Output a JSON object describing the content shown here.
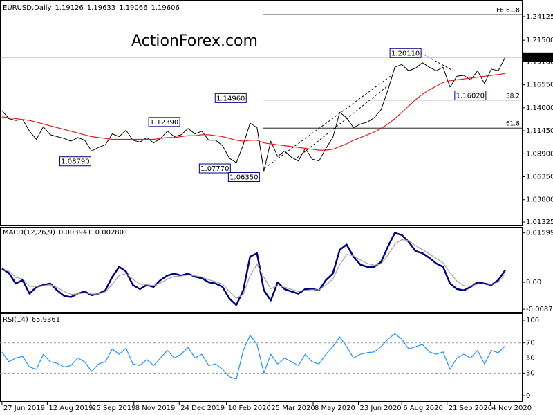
{
  "chart_data": [
    {
      "type": "line",
      "title": "EURUSD,Daily",
      "ohlc": [
        1.19126,
        1.19633,
        1.19066,
        1.19606
      ],
      "watermark": "ActionForex.com",
      "x": [
        0,
        7,
        14,
        21,
        28,
        35,
        42,
        49,
        56,
        63,
        70,
        77,
        84,
        91,
        98,
        105,
        112,
        119,
        126,
        133,
        140,
        147,
        154,
        161,
        168,
        175,
        182,
        189,
        196,
        203,
        210,
        217,
        224,
        231,
        238,
        245,
        252,
        259,
        266,
        273,
        280,
        287,
        294,
        301,
        308,
        315,
        322,
        329,
        336,
        343,
        350,
        357,
        364,
        371,
        378,
        385,
        392,
        399,
        406,
        413,
        420,
        427,
        434,
        441,
        448,
        455,
        462,
        469,
        476,
        483,
        490,
        497,
        504,
        511
      ],
      "xlim": [
        -2,
        528
      ],
      "ylim": [
        1.0094,
        1.2558
      ],
      "yticks": [
        1.24125,
        {
          "value": 1.215,
          "label": "1.21500"
        },
        {
          "value": 1.191,
          "label": "1.19100"
        },
        {
          "value": 1.1655,
          "label": "1.16550"
        },
        {
          "value": 1.14,
          "label": "1.14000"
        },
        {
          "value": 1.1145,
          "label": "1.11450"
        },
        {
          "value": 1.089,
          "label": "1.08900"
        },
        {
          "value": 1.0635,
          "label": "1.06350"
        },
        {
          "value": 1.038,
          "label": "1.03800"
        },
        1.01325
      ],
      "series": [
        {
          "color": "#000000",
          "values": [
            1.137,
            1.128,
            1.126,
            1.127,
            1.114,
            1.105,
            1.119,
            1.11,
            1.108,
            1.106,
            1.103,
            1.107,
            1.104,
            1.092,
            1.096,
            1.099,
            1.111,
            1.108,
            1.115,
            1.104,
            1.102,
            1.107,
            1.101,
            1.106,
            1.114,
            1.108,
            1.11,
            1.117,
            1.111,
            1.114,
            1.104,
            1.104,
            1.098,
            1.084,
            1.079,
            1.099,
            1.123,
            1.118,
            1.07,
            1.103,
            1.086,
            1.092,
            1.085,
            1.081,
            1.095,
            1.083,
            1.081,
            1.095,
            1.107,
            1.135,
            1.129,
            1.118,
            1.122,
            1.124,
            1.129,
            1.138,
            1.16,
            1.185,
            1.188,
            1.181,
            1.184,
            1.19,
            1.185,
            1.181,
            1.185,
            1.163,
            1.175,
            1.176,
            1.171,
            1.181,
            1.167,
            1.183,
            1.181,
            1.196
          ]
        },
        {
          "color": "#dd1f1f",
          "values": [
            1.13,
            1.129,
            1.128,
            1.127,
            1.126,
            1.124,
            1.122,
            1.12,
            1.118,
            1.116,
            1.114,
            1.112,
            1.11,
            1.108,
            1.107,
            1.106,
            1.105,
            1.105,
            1.105,
            1.105,
            1.105,
            1.105,
            1.105,
            1.106,
            1.107,
            1.107,
            1.108,
            1.109,
            1.109,
            1.11,
            1.11,
            1.109,
            1.108,
            1.106,
            1.104,
            1.103,
            1.104,
            1.104,
            1.101,
            1.1,
            1.099,
            1.098,
            1.097,
            1.096,
            1.095,
            1.094,
            1.093,
            1.093,
            1.094,
            1.097,
            1.1,
            1.104,
            1.107,
            1.11,
            1.113,
            1.117,
            1.122,
            1.128,
            1.135,
            1.142,
            1.149,
            1.155,
            1.16,
            1.164,
            1.168,
            1.17,
            1.171,
            1.172,
            1.173,
            1.174,
            1.175,
            1.176,
            1.177,
            1.178
          ]
        }
      ],
      "levels": [
        {
          "label": "FE 61.8",
          "value": 1.2435
        },
        {
          "label": "38.2",
          "value": 1.1485
        },
        {
          "label": "61.8",
          "value": 1.1175
        }
      ],
      "annotations": [
        {
          "x": 427,
          "value": 1.2011,
          "label": "1.20110"
        },
        {
          "x": 457,
          "value": 1.1602,
          "label": "1.16020"
        },
        {
          "x": 253,
          "value": 1.1496,
          "label": "1.14960"
        },
        {
          "x": 182,
          "value": 1.1239,
          "label": "1.12390"
        },
        {
          "x": 65,
          "value": 1.0879,
          "label": "1.08790"
        },
        {
          "x": 232,
          "value": 1.0777,
          "label": "1.07770"
        },
        {
          "x": 265,
          "value": 1.0635,
          "label": "1.06350"
        }
      ]
    },
    {
      "type": "line",
      "title": "MACD(12,26,9)",
      "readings": [
        0.003941,
        0.002801
      ],
      "x": [
        0,
        7,
        14,
        21,
        28,
        35,
        42,
        49,
        56,
        63,
        70,
        77,
        84,
        91,
        98,
        105,
        112,
        119,
        126,
        133,
        140,
        147,
        154,
        161,
        168,
        175,
        182,
        189,
        196,
        203,
        210,
        217,
        224,
        231,
        238,
        245,
        252,
        259,
        266,
        273,
        280,
        287,
        294,
        301,
        308,
        315,
        322,
        329,
        336,
        343,
        350,
        357,
        364,
        371,
        378,
        385,
        392,
        399,
        406,
        413,
        420,
        427,
        434,
        441,
        448,
        455,
        462,
        469,
        476,
        483,
        490,
        497,
        504,
        511
      ],
      "xlim": [
        -2,
        528
      ],
      "ylim": [
        -0.0094,
        0.0175
      ],
      "yticks": [
        0.015991,
        {
          "value": 0,
          "label": "0.00"
        },
        -0.00876
      ],
      "series": [
        {
          "color": "#000080",
          "values": [
            0.0044,
            0.003,
            -0.0004,
            0.0007,
            -0.0037,
            -0.0015,
            -0.0009,
            -0.0004,
            -0.0026,
            -0.0044,
            -0.0048,
            -0.0037,
            -0.003,
            -0.0042,
            -0.0037,
            -0.0026,
            0.0017,
            0.005,
            0.0035,
            -0.0009,
            -0.0022,
            -0.0009,
            -0.0015,
            0.0007,
            0.0022,
            0.0028,
            0.0022,
            0.0028,
            0.0018,
            0.0013,
            0,
            -0.0004,
            -0.0015,
            -0.0053,
            -0.0074,
            -0.0026,
            0.0083,
            0.0094,
            -0.0026,
            -0.0059,
            0,
            -0.0022,
            -0.003,
            -0.0037,
            -0.0022,
            -0.0022,
            -0.0026,
            0.0007,
            0.0028,
            0.0105,
            0.0122,
            0.0083,
            0.0057,
            0.005,
            0.005,
            0.0066,
            0.0116,
            0.016,
            0.0153,
            0.0131,
            0.0101,
            0.0094,
            0.0079,
            0.0061,
            0.005,
            -0.0004,
            -0.0022,
            -0.0026,
            -0.0015,
            0,
            -0.0004,
            -0.0009,
            0.0007,
            0.0039
          ]
        },
        {
          "color": "#a0a0a0",
          "values": [
            0.004,
            0.0036,
            0.0016,
            0.0011,
            -0.0013,
            -0.0014,
            -0.0011,
            -0.0008,
            -0.0017,
            -0.003,
            -0.0039,
            -0.0038,
            -0.0034,
            -0.0038,
            -0.0038,
            -0.0031,
            -0.0007,
            0.0022,
            0.0028,
            0.001,
            -0.0006,
            -0.0008,
            -0.0011,
            -0.0002,
            0.001,
            0.0019,
            0.002,
            0.0024,
            0.0021,
            0.0017,
            0.0008,
            0.0002,
            -0.0006,
            -0.003,
            -0.0052,
            -0.0039,
            0.0022,
            0.0058,
            0.0016,
            -0.0021,
            -0.0011,
            -0.0016,
            -0.0023,
            -0.003,
            -0.0026,
            -0.0024,
            -0.0025,
            -0.0009,
            0.001,
            0.0057,
            0.009,
            0.0086,
            0.0072,
            0.0061,
            0.0055,
            0.006,
            0.0088,
            0.0124,
            0.0138,
            0.0135,
            0.0118,
            0.0106,
            0.0092,
            0.0077,
            0.0063,
            0.003,
            0.0004,
            -0.0011,
            -0.0013,
            -0.0006,
            -0.0005,
            -0.0007,
            0,
            0.0028
          ]
        }
      ]
    },
    {
      "type": "line",
      "title": "RSI(14)",
      "readings": [
        65.9361
      ],
      "x": [
        0,
        7,
        14,
        21,
        28,
        35,
        42,
        49,
        56,
        63,
        70,
        77,
        84,
        91,
        98,
        105,
        112,
        119,
        126,
        133,
        140,
        147,
        154,
        161,
        168,
        175,
        182,
        189,
        196,
        203,
        210,
        217,
        224,
        231,
        238,
        245,
        252,
        259,
        266,
        273,
        280,
        287,
        294,
        301,
        308,
        315,
        322,
        329,
        336,
        343,
        350,
        357,
        364,
        371,
        378,
        385,
        392,
        399,
        406,
        413,
        420,
        427,
        434,
        441,
        448,
        455,
        462,
        469,
        476,
        483,
        490,
        497,
        504,
        511
      ],
      "xlim": [
        -2,
        528
      ],
      "ylim": [
        -7.3,
        106.4
      ],
      "yticks": [
        100,
        70,
        50,
        30,
        0
      ],
      "dashed_levels": [
        70,
        30
      ],
      "xticks": [
        {
          "value": 0,
          "label": "27 Jun 2019"
        },
        {
          "value": 46,
          "label": "12 Aug 2019"
        },
        {
          "value": 90,
          "label": "25 Sep 2019"
        },
        {
          "value": 134,
          "label": "8 Nov 2019"
        },
        {
          "value": 180,
          "label": "24 Dec 2019"
        },
        {
          "value": 228,
          "label": "10 Feb 2020"
        },
        {
          "value": 272,
          "label": "25 Mar 2020"
        },
        {
          "value": 316,
          "label": "8 May 2020"
        },
        {
          "value": 362,
          "label": "23 Jun 2020"
        },
        {
          "value": 406,
          "label": "6 Aug 2020"
        },
        {
          "value": 452,
          "label": "21 Sep 2020"
        },
        {
          "value": 496,
          "label": "4 Nov 2020"
        }
      ],
      "series": [
        {
          "color": "#1e90ff",
          "values": [
            58,
            45,
            50,
            52,
            38,
            35,
            55,
            45,
            43,
            38,
            40,
            50,
            45,
            32,
            42,
            45,
            62,
            55,
            63,
            42,
            40,
            48,
            40,
            50,
            60,
            50,
            55,
            64,
            50,
            55,
            40,
            42,
            35,
            25,
            22,
            60,
            80,
            68,
            30,
            55,
            42,
            50,
            45,
            40,
            55,
            45,
            42,
            55,
            65,
            78,
            65,
            50,
            55,
            57,
            58,
            65,
            75,
            82,
            75,
            62,
            65,
            68,
            58,
            55,
            58,
            35,
            50,
            55,
            50,
            60,
            42,
            60,
            57,
            66
          ]
        }
      ]
    }
  ]
}
